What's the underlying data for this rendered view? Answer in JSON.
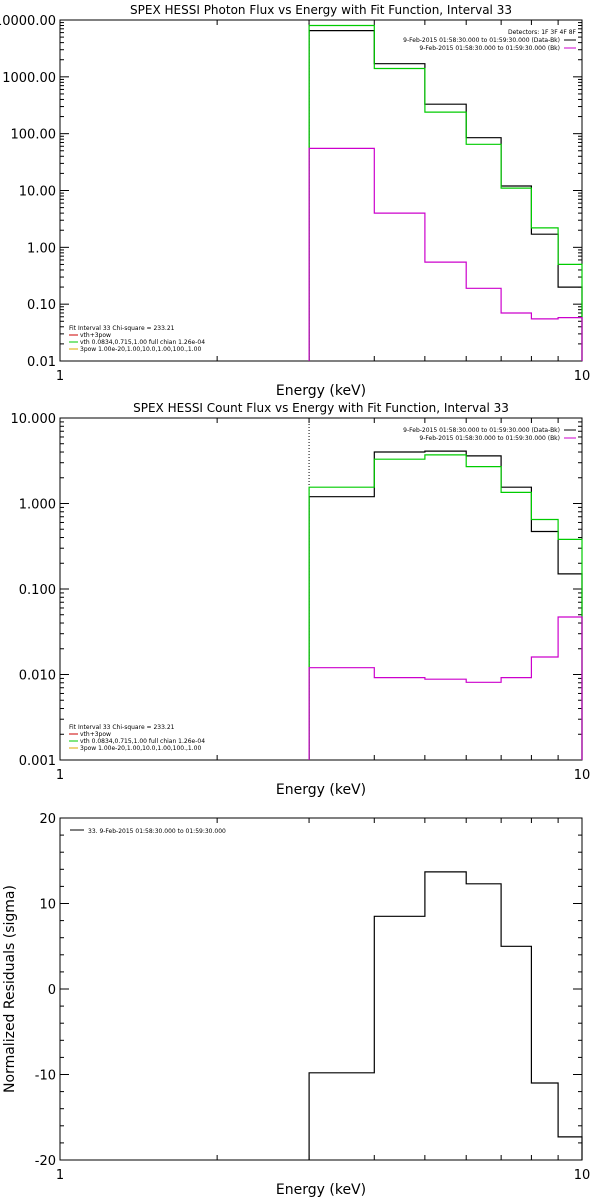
{
  "chart_data": [
    {
      "type": "line",
      "title": "SPEX HESSI Photon Flux vs Energy with Fit Function, Interval 33",
      "xlabel": "Energy (keV)",
      "ylabel": "",
      "xscale": "log",
      "yscale": "log",
      "xlim": [
        1,
        10
      ],
      "ylim": [
        0.01,
        10000
      ],
      "xticks": [
        {
          "v": 1,
          "label": "1"
        },
        {
          "v": 10,
          "label": "10"
        }
      ],
      "yticks": [
        {
          "v": 10000,
          "label": "10000.00"
        },
        {
          "v": 1000,
          "label": "1000.00"
        },
        {
          "v": 100,
          "label": "100.00"
        },
        {
          "v": 10,
          "label": "10.00"
        },
        {
          "v": 1,
          "label": "1.00"
        },
        {
          "v": 0.1,
          "label": "0.10"
        },
        {
          "v": 0.01,
          "label": "0.01"
        }
      ],
      "legend_top": [
        "Detectors: 1F 3F 4F 8F",
        "9-Feb-2015 01:58:30.000 to 01:59:30.000 (Data-Bk)",
        "9-Feb-2015 01:58:30.000 to 01:59:30.000 (Bk)"
      ],
      "legend_top_colors": [
        "",
        "#000000",
        "#cc00cc"
      ],
      "legend_bottom": [
        "Fit Interval 33   Chi-square = 233.21",
        "vth+3pow",
        "vth 0.0834,0.715,1.00  full chian 1.26e-04",
        "3pow 1.00e-20,1.00,10.0,1.00,100.,1.00"
      ],
      "legend_bottom_colors": [
        "",
        "#cc0000",
        "#00cc00",
        "#ddaa00"
      ],
      "vline_x": 3,
      "series": [
        {
          "name": "Data-Bk",
          "color": "#000000",
          "edges": [
            3,
            4,
            5,
            6,
            7,
            8,
            9,
            10
          ],
          "values": [
            6500,
            1700,
            330,
            85,
            12,
            1.7,
            0.2
          ]
        },
        {
          "name": "vth+3pow",
          "color": "#00cc00",
          "edges": [
            3,
            4,
            5,
            6,
            7,
            8,
            9,
            10
          ],
          "values": [
            8000,
            1400,
            240,
            65,
            11,
            2.2,
            0.5
          ]
        },
        {
          "name": "Bk",
          "color": "#cc00cc",
          "edges": [
            3,
            4,
            5,
            6,
            7,
            8,
            9,
            10
          ],
          "values": [
            55,
            4,
            0.55,
            0.19,
            0.07,
            0.055,
            0.058
          ]
        }
      ]
    },
    {
      "type": "line",
      "title": "SPEX HESSI Count Flux vs Energy with Fit Function, Interval 33",
      "xlabel": "Energy (keV)",
      "ylabel": "",
      "xscale": "log",
      "yscale": "log",
      "xlim": [
        1,
        10
      ],
      "ylim": [
        0.001,
        10
      ],
      "xticks": [
        {
          "v": 1,
          "label": "1"
        },
        {
          "v": 10,
          "label": "10"
        }
      ],
      "yticks": [
        {
          "v": 10,
          "label": "10.000"
        },
        {
          "v": 1,
          "label": "1.000"
        },
        {
          "v": 0.1,
          "label": "0.100"
        },
        {
          "v": 0.01,
          "label": "0.010"
        },
        {
          "v": 0.001,
          "label": "0.001"
        }
      ],
      "legend_top": [
        "9-Feb-2015 01:58:30.000 to 01:59:30.000 (Data-Bk)",
        "9-Feb-2015 01:58:30.000 to 01:59:30.000 (Bk)"
      ],
      "legend_top_colors": [
        "#000000",
        "#cc00cc"
      ],
      "legend_bottom": [
        "Fit Interval 33   Chi-square = 233.21",
        "vth+3pow",
        "vth 0.0834,0.715,1.00  full chian 1.26e-04",
        "3pow 1.00e-20,1.00,10.0,1.00,100.,1.00"
      ],
      "legend_bottom_colors": [
        "",
        "#cc0000",
        "#00cc00",
        "#ddaa00"
      ],
      "vline_x": 3,
      "series": [
        {
          "name": "Data-Bk",
          "color": "#000000",
          "edges": [
            3,
            4,
            5,
            6,
            7,
            8,
            9,
            10
          ],
          "values": [
            1.2,
            4.0,
            4.1,
            3.6,
            1.55,
            0.47,
            0.15
          ]
        },
        {
          "name": "vth+3pow",
          "color": "#00cc00",
          "edges": [
            3,
            4,
            5,
            6,
            7,
            8,
            9,
            10
          ],
          "values": [
            1.55,
            3.3,
            3.7,
            2.7,
            1.35,
            0.65,
            0.38
          ]
        },
        {
          "name": "Bk",
          "color": "#cc00cc",
          "edges": [
            3,
            4,
            5,
            6,
            7,
            8,
            9,
            10
          ],
          "values": [
            0.012,
            0.0092,
            0.0088,
            0.0081,
            0.0092,
            0.016,
            0.047
          ]
        }
      ]
    },
    {
      "type": "line",
      "title": "",
      "xlabel": "Energy (keV)",
      "ylabel": "Normalized Residuals (sigma)",
      "xscale": "log",
      "yscale": "linear",
      "xlim": [
        1,
        10
      ],
      "ylim": [
        -20,
        20
      ],
      "xticks": [
        {
          "v": 1,
          "label": "1"
        },
        {
          "v": 10,
          "label": "10"
        }
      ],
      "yticks": [
        {
          "v": 20,
          "label": "20"
        },
        {
          "v": 10,
          "label": "10"
        },
        {
          "v": 0,
          "label": "0"
        },
        {
          "v": -10,
          "label": "-10"
        },
        {
          "v": -20,
          "label": "-20"
        }
      ],
      "legend_top": [
        "33.  9-Feb-2015 01:58:30.000 to 01:59:30.000"
      ],
      "legend_top_colors": [
        "#000000"
      ],
      "legend_bottom": [],
      "legend_bottom_colors": [],
      "series": [
        {
          "name": "33.  9-Feb-2015 01:58:30.000 to 01:59:30.000",
          "color": "#000000",
          "edges": [
            3,
            4,
            5,
            6,
            7,
            8,
            9,
            10
          ],
          "values": [
            -9.8,
            8.5,
            13.7,
            12.3,
            5.0,
            -11.0,
            -17.3
          ]
        }
      ]
    }
  ]
}
